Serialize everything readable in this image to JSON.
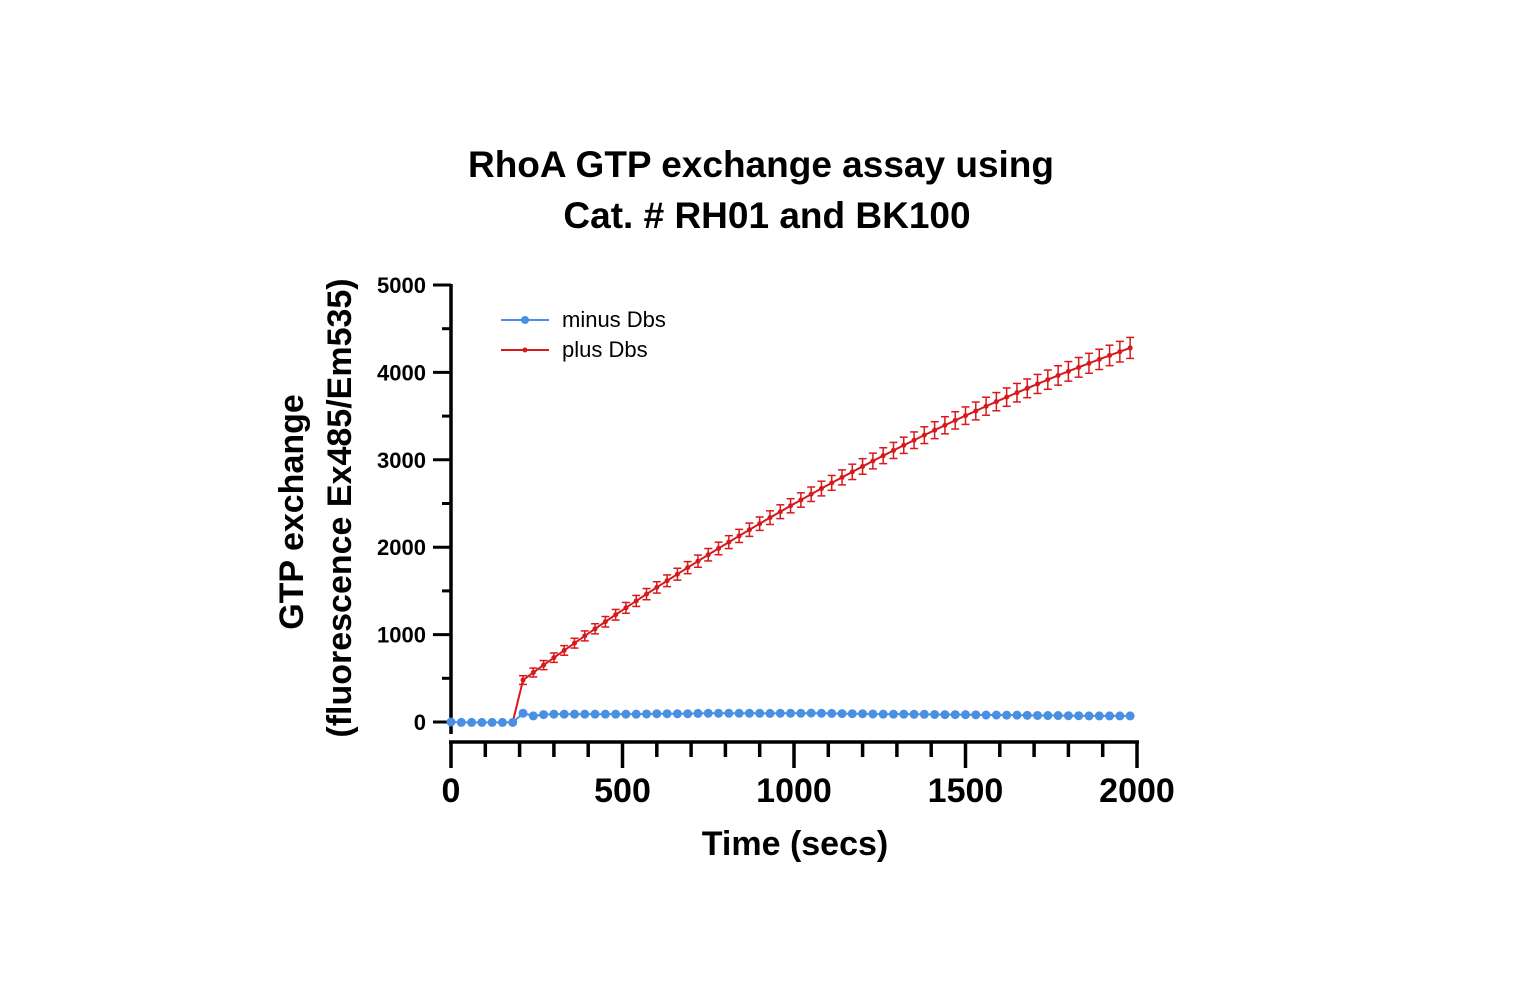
{
  "chart_data": {
    "type": "line",
    "title_lines": [
      "RhoA GTP exchange assay using",
      "Cat. # RH01 and BK100"
    ],
    "xlabel": "Time (secs)",
    "ylabel_lines": [
      "GTP exchange",
      "(fluorescence Ex485/Em535)"
    ],
    "xlim": [
      0,
      2000
    ],
    "ylim": [
      0,
      5000
    ],
    "x_ticks": [
      "0",
      "500",
      "1000",
      "1500",
      "2000"
    ],
    "y_ticks": [
      "0",
      "1000",
      "2000",
      "3000",
      "4000",
      "5000"
    ],
    "grid": false,
    "legend_position": "top-left",
    "series": [
      {
        "name": "minus Dbs",
        "color": "#4a90e2",
        "marker": "circle",
        "x": [
          0,
          30,
          60,
          90,
          120,
          150,
          180,
          210,
          240,
          270,
          300,
          330,
          360,
          390,
          420,
          450,
          480,
          510,
          540,
          570,
          600,
          630,
          660,
          690,
          720,
          750,
          780,
          810,
          840,
          870,
          900,
          930,
          960,
          990,
          1020,
          1050,
          1080,
          1110,
          1140,
          1170,
          1200,
          1230,
          1260,
          1290,
          1320,
          1350,
          1380,
          1410,
          1440,
          1470,
          1500,
          1530,
          1560,
          1590,
          1620,
          1650,
          1680,
          1710,
          1740,
          1770,
          1800,
          1830,
          1860,
          1890,
          1920,
          1950,
          1980
        ],
        "y": [
          0,
          -5,
          -5,
          -5,
          -5,
          -5,
          -5,
          100,
          70,
          85,
          90,
          90,
          90,
          90,
          90,
          90,
          90,
          90,
          90,
          92,
          95,
          95,
          95,
          95,
          98,
          100,
          100,
          100,
          100,
          100,
          100,
          98,
          100,
          100,
          100,
          102,
          100,
          98,
          96,
          95,
          95,
          92,
          90,
          90,
          90,
          88,
          88,
          86,
          85,
          85,
          84,
          82,
          80,
          80,
          78,
          78,
          76,
          75,
          74,
          74,
          72,
          72,
          70,
          70,
          70,
          70,
          70
        ]
      },
      {
        "name": "plus Dbs",
        "color": "#d7191c",
        "marker": "dot-with-error-bars",
        "x": [
          210,
          240,
          270,
          300,
          330,
          360,
          390,
          420,
          450,
          480,
          510,
          540,
          570,
          600,
          630,
          660,
          690,
          720,
          750,
          780,
          810,
          840,
          870,
          900,
          930,
          960,
          990,
          1020,
          1050,
          1080,
          1110,
          1140,
          1170,
          1200,
          1230,
          1260,
          1290,
          1320,
          1350,
          1380,
          1410,
          1440,
          1470,
          1500,
          1530,
          1560,
          1590,
          1620,
          1650,
          1680,
          1710,
          1740,
          1770,
          1800,
          1830,
          1860,
          1890,
          1920,
          1950,
          1980
        ],
        "y": [
          480,
          566,
          651,
          736,
          819,
          902,
          985,
          1066,
          1147,
          1227,
          1306,
          1385,
          1463,
          1540,
          1616,
          1691,
          1766,
          1840,
          1914,
          1986,
          2058,
          2129,
          2200,
          2269,
          2338,
          2406,
          2474,
          2540,
          2606,
          2671,
          2736,
          2799,
          2862,
          2924,
          2986,
          3047,
          3107,
          3166,
          3224,
          3282,
          3339,
          3395,
          3451,
          3505,
          3559,
          3613,
          3665,
          3717,
          3768,
          3818,
          3868,
          3917,
          3965,
          4012,
          4058,
          4104,
          4149,
          4194,
          4237,
          4280
        ],
        "error": [
          50,
          51,
          52,
          54,
          55,
          56,
          57,
          58,
          60,
          61,
          62,
          63,
          64,
          65,
          67,
          68,
          69,
          70,
          71,
          72,
          74,
          75,
          76,
          77,
          78,
          79,
          81,
          82,
          83,
          84,
          85,
          86,
          88,
          89,
          90,
          91,
          92,
          93,
          95,
          96,
          97,
          98,
          99,
          100,
          102,
          103,
          104,
          105,
          106,
          107,
          109,
          110,
          111,
          112,
          113,
          114,
          116,
          117,
          118,
          120
        ]
      }
    ]
  }
}
